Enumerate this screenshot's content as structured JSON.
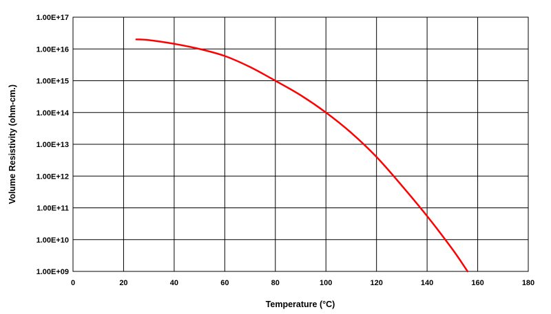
{
  "chart_data": {
    "type": "line",
    "title": "",
    "xlabel": "Temperature (°C)",
    "ylabel": "Volume Resistivity (ohm-cm.)",
    "xlim": [
      0,
      180
    ],
    "ylim": [
      1000000000.0,
      1e+17
    ],
    "y_scale": "log",
    "grid": true,
    "x_ticks": [
      0,
      20,
      40,
      60,
      80,
      100,
      120,
      140,
      160,
      180
    ],
    "x_tick_labels": [
      "0",
      "20",
      "40",
      "60",
      "80",
      "100",
      "120",
      "140",
      "160",
      "180"
    ],
    "y_ticks": [
      1000000000.0,
      10000000000.0,
      100000000000.0,
      1000000000000.0,
      10000000000000.0,
      100000000000000.0,
      1000000000000000.0,
      1e+16,
      1e+17
    ],
    "y_tick_labels": [
      "1.00E+09",
      "1.00E+10",
      "1.00E+11",
      "1.00E+12",
      "1.00E+13",
      "1.00E+14",
      "1.00E+15",
      "1.00E+16",
      "1.00E+17"
    ],
    "series": [
      {
        "color": "#ff0000",
        "x": [
          25,
          30,
          40,
          50,
          60,
          70,
          80,
          90,
          100,
          110,
          120,
          130,
          140,
          150,
          156
        ],
        "y": [
          2e+16,
          1.9e+16,
          1.45e+16,
          1e+16,
          6000000000000000.0,
          2700000000000000.0,
          1000000000000000.0,
          350000000000000.0,
          100000000000000.0,
          23000000000000.0,
          4000000000000.0,
          500000000000.0,
          55000000000.0,
          5000000000.0,
          1000000000.0
        ]
      }
    ]
  }
}
